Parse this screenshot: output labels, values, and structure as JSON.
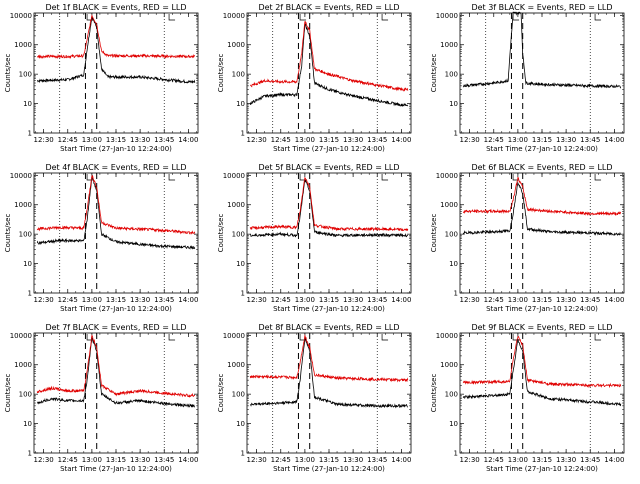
{
  "chart_data": [
    {
      "type": "line",
      "title": "Det 1f BLACK = Events, RED = LLD",
      "xlabel": "Start Time (27-Jan-10 12:24:00)",
      "ylabel": "Counts/sec",
      "yscale": "log",
      "ylim": [
        1,
        12000
      ],
      "xlim_minutes": [
        12.4,
        14.1
      ],
      "x_ticks": [
        "12:30",
        "12:45",
        "13:00",
        "13:15",
        "13:30",
        "13:45",
        "14:00"
      ],
      "y_ticks": [
        "1",
        "10",
        "100",
        "1000",
        "10000"
      ],
      "dotted_lines": [
        "12:40",
        "13:45"
      ],
      "dashed_lines": [
        "12:56",
        "13:03"
      ],
      "series": [
        {
          "color": "#000000",
          "x": [
            "12:26",
            "12:45",
            "12:55",
            "12:57",
            "13:00",
            "13:03",
            "13:06",
            "13:10",
            "13:30",
            "14:00",
            "14:04"
          ],
          "values": [
            60,
            65,
            95,
            700,
            9000,
            4000,
            150,
            80,
            80,
            55,
            55
          ]
        },
        {
          "color": "#e00000",
          "x": [
            "12:26",
            "12:45",
            "12:55",
            "12:57",
            "13:00",
            "13:03",
            "13:06",
            "13:10",
            "13:30",
            "14:00",
            "14:04"
          ],
          "values": [
            400,
            400,
            420,
            1500,
            10000,
            5000,
            600,
            420,
            420,
            400,
            400
          ]
        }
      ]
    },
    {
      "type": "line",
      "title": "Det 2f BLACK = Events, RED = LLD",
      "xlabel": "Start Time (27-Jan-10 12:24:00)",
      "ylabel": "Counts/sec",
      "yscale": "log",
      "ylim": [
        1,
        12000
      ],
      "x_ticks": [
        "12:30",
        "12:45",
        "13:00",
        "13:15",
        "13:30",
        "13:45",
        "14:00"
      ],
      "y_ticks": [
        "1",
        "10",
        "100",
        "1000",
        "10000"
      ],
      "dotted_lines": [
        "12:40",
        "13:45"
      ],
      "dashed_lines": [
        "12:56",
        "13:03"
      ],
      "series": [
        {
          "color": "#000000",
          "x": [
            "12:26",
            "12:35",
            "12:45",
            "12:55",
            "12:58",
            "13:00",
            "13:03",
            "13:06",
            "13:15",
            "13:30",
            "14:00",
            "14:04"
          ],
          "values": [
            10,
            18,
            20,
            20,
            200,
            5000,
            2000,
            50,
            30,
            18,
            9,
            9
          ]
        },
        {
          "color": "#e00000",
          "x": [
            "12:26",
            "12:35",
            "12:45",
            "12:55",
            "12:58",
            "13:00",
            "13:03",
            "13:06",
            "13:15",
            "13:30",
            "14:00",
            "14:04"
          ],
          "values": [
            40,
            60,
            55,
            55,
            500,
            6500,
            3000,
            150,
            100,
            60,
            30,
            30
          ]
        }
      ]
    },
    {
      "type": "line",
      "title": "Det 3f BLACK = Events, RED = LLD",
      "xlabel": "Start Time (27-Jan-10 12:24:00)",
      "ylabel": "Counts/sec",
      "yscale": "log",
      "ylim": [
        1,
        12000
      ],
      "x_ticks": [
        "12:30",
        "12:45",
        "13:00",
        "13:15",
        "13:30",
        "13:45",
        "14:00"
      ],
      "y_ticks": [
        "1",
        "10",
        "100",
        "1000",
        "10000"
      ],
      "dotted_lines": [
        "12:40",
        "13:45"
      ],
      "dashed_lines": [
        "12:56",
        "13:03"
      ],
      "series": [
        {
          "color": "#000000",
          "x": [
            "12:26",
            "12:45",
            "12:54",
            "12:55",
            "12:57",
            "13:02",
            "13:03",
            "13:05",
            "13:15",
            "13:45",
            "14:04"
          ],
          "values": [
            40,
            50,
            60,
            400,
            12000,
            12000,
            500,
            50,
            45,
            40,
            38
          ]
        }
      ]
    },
    {
      "type": "line",
      "title": "Det 4f BLACK = Events, RED = LLD",
      "xlabel": "Start Time (27-Jan-10 12:24:00)",
      "ylabel": "Counts/sec",
      "yscale": "log",
      "ylim": [
        1,
        12000
      ],
      "x_ticks": [
        "12:30",
        "12:45",
        "13:00",
        "13:15",
        "13:30",
        "13:45",
        "14:00"
      ],
      "y_ticks": [
        "1",
        "10",
        "100",
        "1000",
        "10000"
      ],
      "dotted_lines": [
        "12:40",
        "13:45"
      ],
      "dashed_lines": [
        "12:56",
        "13:03"
      ],
      "series": [
        {
          "color": "#000000",
          "x": [
            "12:26",
            "12:40",
            "12:55",
            "12:57",
            "13:00",
            "13:03",
            "13:06",
            "13:15",
            "13:40",
            "14:04"
          ],
          "values": [
            50,
            60,
            60,
            300,
            9000,
            3000,
            100,
            55,
            40,
            35
          ]
        },
        {
          "color": "#e00000",
          "x": [
            "12:26",
            "12:40",
            "12:55",
            "12:57",
            "13:00",
            "13:03",
            "13:06",
            "13:15",
            "13:40",
            "14:04"
          ],
          "values": [
            150,
            170,
            160,
            700,
            10000,
            4000,
            250,
            160,
            140,
            110
          ]
        }
      ]
    },
    {
      "type": "line",
      "title": "Det 5f BLACK = Events, RED = LLD",
      "xlabel": "Start Time (27-Jan-10 12:24:00)",
      "ylabel": "Counts/sec",
      "yscale": "log",
      "ylim": [
        1,
        12000
      ],
      "x_ticks": [
        "12:30",
        "12:45",
        "13:00",
        "13:15",
        "13:30",
        "13:45",
        "14:00"
      ],
      "y_ticks": [
        "1",
        "10",
        "100",
        "1000",
        "10000"
      ],
      "dotted_lines": [
        "12:40",
        "13:45"
      ],
      "dashed_lines": [
        "12:56",
        "13:03"
      ],
      "series": [
        {
          "color": "#000000",
          "x": [
            "12:26",
            "12:45",
            "12:55",
            "12:57",
            "13:00",
            "13:03",
            "13:06",
            "13:20",
            "13:45",
            "14:04"
          ],
          "values": [
            90,
            100,
            90,
            400,
            7000,
            3000,
            120,
            90,
            95,
            90
          ]
        },
        {
          "color": "#e00000",
          "x": [
            "12:26",
            "12:45",
            "12:55",
            "12:57",
            "13:00",
            "13:03",
            "13:06",
            "13:20",
            "13:45",
            "14:04"
          ],
          "values": [
            160,
            180,
            170,
            600,
            9000,
            4000,
            200,
            150,
            150,
            140
          ]
        }
      ]
    },
    {
      "type": "line",
      "title": "Det 6f BLACK = Events, RED = LLD",
      "xlabel": "Start Time (27-Jan-10 12:24:00)",
      "ylabel": "Counts/sec",
      "yscale": "log",
      "ylim": [
        1,
        12000
      ],
      "x_ticks": [
        "12:30",
        "12:45",
        "13:00",
        "13:15",
        "13:30",
        "13:45",
        "14:00"
      ],
      "y_ticks": [
        "1",
        "10",
        "100",
        "1000",
        "10000"
      ],
      "dotted_lines": [
        "12:40",
        "13:45"
      ],
      "dashed_lines": [
        "12:56",
        "13:03"
      ],
      "series": [
        {
          "color": "#000000",
          "x": [
            "12:26",
            "12:45",
            "12:55",
            "12:57",
            "13:00",
            "13:03",
            "13:06",
            "13:20",
            "13:45",
            "14:04"
          ],
          "values": [
            110,
            120,
            130,
            500,
            6000,
            2500,
            150,
            120,
            110,
            100
          ]
        },
        {
          "color": "#e00000",
          "x": [
            "12:26",
            "12:45",
            "12:55",
            "12:57",
            "13:00",
            "13:03",
            "13:06",
            "13:20",
            "13:45",
            "14:04"
          ],
          "values": [
            600,
            600,
            600,
            1500,
            8000,
            4000,
            700,
            600,
            500,
            500
          ]
        }
      ]
    },
    {
      "type": "line",
      "title": "Det 7f BLACK = Events, RED = LLD",
      "xlabel": "Start Time (27-Jan-10 12:24:00)",
      "ylabel": "Counts/sec",
      "yscale": "log",
      "ylim": [
        1,
        12000
      ],
      "x_ticks": [
        "12:30",
        "12:45",
        "13:00",
        "13:15",
        "13:30",
        "13:45",
        "14:00"
      ],
      "y_ticks": [
        "1",
        "10",
        "100",
        "1000",
        "10000"
      ],
      "dotted_lines": [
        "12:40",
        "13:45"
      ],
      "dashed_lines": [
        "12:56",
        "13:03"
      ],
      "series": [
        {
          "color": "#000000",
          "x": [
            "12:26",
            "12:35",
            "12:45",
            "12:55",
            "12:57",
            "13:00",
            "13:03",
            "13:06",
            "13:15",
            "13:30",
            "14:00",
            "14:04"
          ],
          "values": [
            50,
            70,
            60,
            60,
            300,
            8000,
            3000,
            100,
            50,
            60,
            40,
            40
          ]
        },
        {
          "color": "#e00000",
          "x": [
            "12:26",
            "12:35",
            "12:45",
            "12:55",
            "12:57",
            "13:00",
            "13:03",
            "13:06",
            "13:15",
            "13:30",
            "14:00",
            "14:04"
          ],
          "values": [
            120,
            160,
            130,
            130,
            600,
            9500,
            4000,
            200,
            100,
            130,
            90,
            90
          ]
        }
      ]
    },
    {
      "type": "line",
      "title": "Det 8f BLACK = Events, RED = LLD",
      "xlabel": "Start Time (27-Jan-10 12:24:00)",
      "ylabel": "Counts/sec",
      "yscale": "log",
      "ylim": [
        1,
        12000
      ],
      "x_ticks": [
        "12:30",
        "12:45",
        "13:00",
        "13:15",
        "13:30",
        "13:45",
        "14:00"
      ],
      "y_ticks": [
        "1",
        "10",
        "100",
        "1000",
        "10000"
      ],
      "dotted_lines": [
        "12:40",
        "13:45"
      ],
      "dashed_lines": [
        "12:56",
        "13:03"
      ],
      "series": [
        {
          "color": "#000000",
          "x": [
            "12:26",
            "12:45",
            "12:55",
            "12:57",
            "13:00",
            "13:03",
            "13:06",
            "13:20",
            "13:45",
            "14:04"
          ],
          "values": [
            45,
            50,
            55,
            300,
            8000,
            3000,
            80,
            45,
            40,
            40
          ]
        },
        {
          "color": "#e00000",
          "x": [
            "12:26",
            "12:45",
            "12:55",
            "12:57",
            "13:00",
            "13:03",
            "13:06",
            "13:20",
            "13:45",
            "14:04"
          ],
          "values": [
            400,
            380,
            370,
            1200,
            9500,
            4000,
            450,
            350,
            320,
            300
          ]
        }
      ]
    },
    {
      "type": "line",
      "title": "Det 9f BLACK = Events, RED = LLD",
      "xlabel": "Start Time (27-Jan-10 12:24:00)",
      "ylabel": "Counts/sec",
      "yscale": "log",
      "ylim": [
        1,
        12000
      ],
      "x_ticks": [
        "12:30",
        "12:45",
        "13:00",
        "13:15",
        "13:30",
        "13:45",
        "14:00"
      ],
      "y_ticks": [
        "1",
        "10",
        "100",
        "1000",
        "10000"
      ],
      "dotted_lines": [
        "12:40",
        "13:45"
      ],
      "dashed_lines": [
        "12:56",
        "13:03"
      ],
      "series": [
        {
          "color": "#000000",
          "x": [
            "12:26",
            "12:45",
            "12:55",
            "12:57",
            "13:00",
            "13:03",
            "13:06",
            "13:20",
            "13:45",
            "14:04"
          ],
          "values": [
            80,
            90,
            100,
            600,
            7000,
            3000,
            120,
            70,
            55,
            45
          ]
        },
        {
          "color": "#e00000",
          "x": [
            "12:26",
            "12:45",
            "12:55",
            "12:57",
            "13:00",
            "13:03",
            "13:06",
            "13:20",
            "13:45",
            "14:04"
          ],
          "values": [
            250,
            260,
            270,
            1500,
            9000,
            4500,
            300,
            220,
            200,
            200
          ]
        }
      ]
    }
  ]
}
